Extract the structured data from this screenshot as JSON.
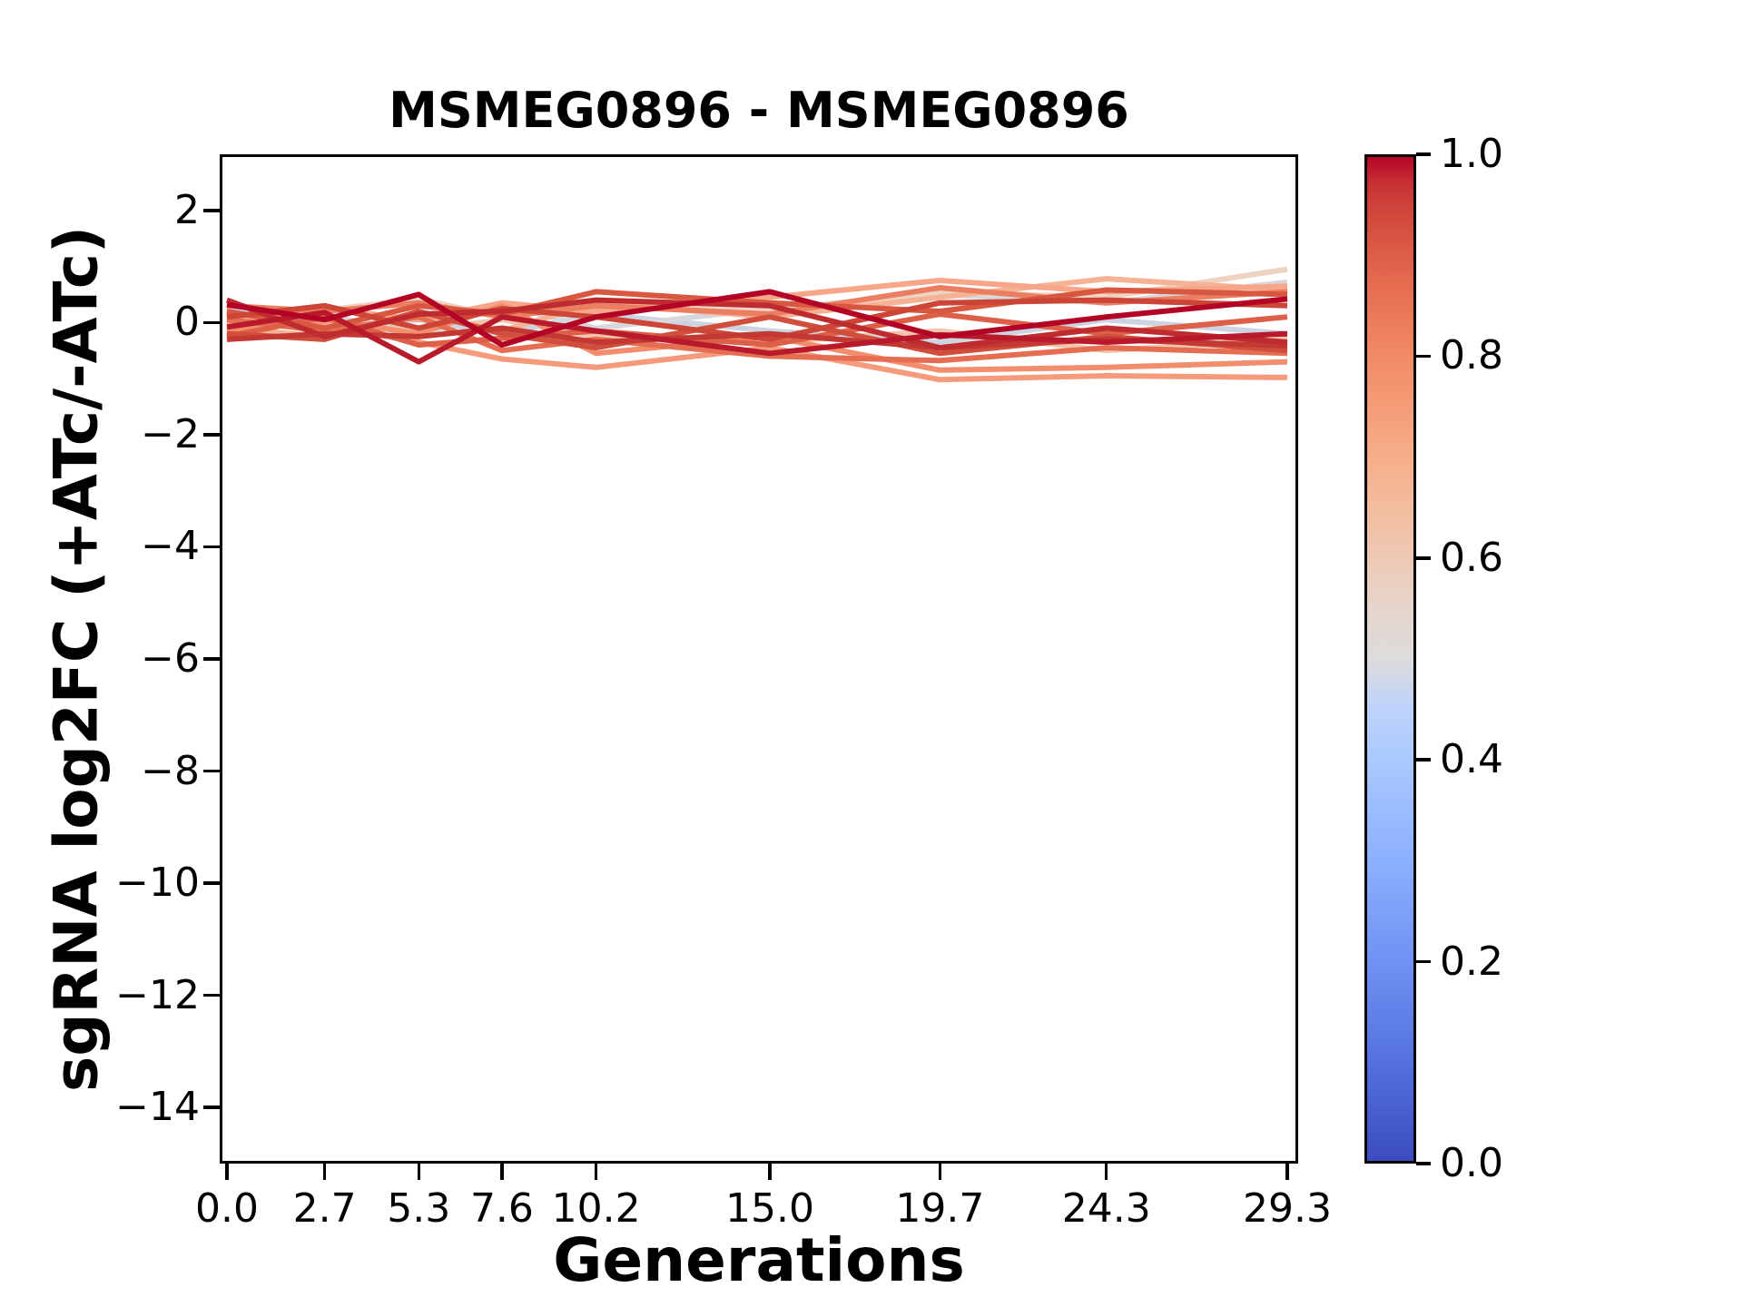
{
  "figure": {
    "background": "#ffffff",
    "spine_color": "#000000",
    "text_color": "#000000"
  },
  "chart_data": {
    "type": "line",
    "title": "MSMEG0896 - MSMEG0896",
    "xlabel": "Generations",
    "ylabel": "sgRNA log2FC (+ATc/-ATc)",
    "x": [
      0.0,
      2.7,
      5.3,
      7.6,
      10.2,
      15.0,
      19.7,
      24.3,
      29.3
    ],
    "x_tick_labels": [
      "0.0",
      "2.7",
      "5.3",
      "7.6",
      "10.2",
      "15.0",
      "19.7",
      "24.3",
      "29.3"
    ],
    "y_ticks": [
      2,
      0,
      -2,
      -4,
      -6,
      -8,
      -10,
      -12,
      -14
    ],
    "y_tick_labels": [
      "2",
      "0",
      "−2",
      "−4",
      "−6",
      "−8",
      "−10",
      "−12",
      "−14"
    ],
    "xlim": [
      -0.2,
      29.6
    ],
    "ylim": [
      -15,
      3
    ],
    "grid": false,
    "legend": "none",
    "line_width": 6,
    "series": [
      {
        "colormap_value": 0.6,
        "color": "#f2c6ac",
        "values": [
          0.2,
          0.1,
          -0.15,
          0.05,
          -0.25,
          -0.35,
          -0.15,
          -0.5,
          -0.3
        ]
      },
      {
        "colormap_value": 0.45,
        "color": "#ccd3e1",
        "values": [
          0.25,
          -0.1,
          0.05,
          -0.2,
          0.15,
          -0.15,
          -0.35,
          0.05,
          -0.2
        ]
      },
      {
        "colormap_value": 0.48,
        "color": "#d6d8dd",
        "values": [
          -0.05,
          0.15,
          -0.25,
          0.32,
          -0.1,
          0.25,
          0.5,
          0.35,
          0.72
        ]
      },
      {
        "colormap_value": 0.55,
        "color": "#eed3c3",
        "values": [
          0.1,
          0.22,
          0.42,
          0.1,
          0.3,
          0.2,
          0.55,
          0.45,
          0.95
        ]
      },
      {
        "colormap_value": 0.68,
        "color": "#f6b295",
        "values": [
          -0.1,
          -0.25,
          0.15,
          -0.15,
          0.35,
          0.1,
          0.45,
          0.78,
          0.58
        ]
      },
      {
        "colormap_value": 0.72,
        "color": "#f7a689",
        "values": [
          0.0,
          0.25,
          0.05,
          0.35,
          0.2,
          0.45,
          0.75,
          0.55,
          0.65
        ]
      },
      {
        "colormap_value": 0.75,
        "color": "#f59b7c",
        "values": [
          0.15,
          -0.05,
          -0.35,
          -0.65,
          -0.8,
          -0.45,
          -1.02,
          -0.95,
          -0.98
        ]
      },
      {
        "colormap_value": 0.78,
        "color": "#f28e6e",
        "values": [
          -0.15,
          0.05,
          -0.2,
          0.3,
          -0.55,
          -0.25,
          -0.85,
          -0.8,
          -0.7
        ]
      },
      {
        "colormap_value": 0.82,
        "color": "#eb7d60",
        "values": [
          0.3,
          0.2,
          0.35,
          0.1,
          0.3,
          0.15,
          0.62,
          0.35,
          0.55
        ]
      },
      {
        "colormap_value": 0.85,
        "color": "#e56e52",
        "values": [
          0.05,
          -0.15,
          0.1,
          -0.5,
          -0.3,
          -0.6,
          -0.68,
          -0.45,
          -0.55
        ]
      },
      {
        "colormap_value": 0.88,
        "color": "#de5f47",
        "values": [
          -0.25,
          0.1,
          -0.4,
          -0.28,
          -0.15,
          -0.4,
          0.15,
          -0.2,
          0.1
        ]
      },
      {
        "colormap_value": 0.9,
        "color": "#d85740",
        "values": [
          0.2,
          -0.1,
          0.3,
          0.15,
          0.55,
          0.35,
          0.2,
          0.58,
          0.5
        ]
      },
      {
        "colormap_value": 0.92,
        "color": "#d14e3c",
        "values": [
          -0.2,
          -0.3,
          0.2,
          -0.2,
          -0.45,
          0.1,
          -0.55,
          -0.25,
          -0.5
        ]
      },
      {
        "colormap_value": 0.93,
        "color": "#cc4537",
        "values": [
          0.1,
          0.3,
          -0.1,
          0.25,
          0.1,
          -0.3,
          0.35,
          0.4,
          0.3
        ]
      },
      {
        "colormap_value": 0.95,
        "color": "#c43833",
        "values": [
          -0.3,
          -0.2,
          -0.25,
          -0.1,
          -0.35,
          -0.2,
          -0.45,
          -0.3,
          -0.42
        ]
      },
      {
        "colormap_value": 0.96,
        "color": "#bf2c30",
        "values": [
          0.4,
          -0.25,
          0.15,
          0.2,
          0.4,
          0.3,
          -0.45,
          -0.1,
          -0.35
        ]
      },
      {
        "colormap_value": 0.98,
        "color": "#b8192b",
        "values": [
          -0.08,
          0.18,
          -0.7,
          0.1,
          -0.15,
          -0.55,
          -0.22,
          -0.35,
          -0.2
        ]
      },
      {
        "colormap_value": 1.0,
        "color": "#b40426",
        "values": [
          0.32,
          0.05,
          0.5,
          -0.4,
          0.1,
          0.55,
          -0.25,
          0.1,
          0.42
        ]
      }
    ],
    "colorbar": {
      "cmap": "coolwarm",
      "range": [
        0.0,
        1.0
      ],
      "tick_values": [
        1.0,
        0.8,
        0.6,
        0.4,
        0.2,
        0.0
      ],
      "tick_labels": [
        "1.0",
        "0.8",
        "0.6",
        "0.4",
        "0.2",
        "0.0"
      ],
      "gradient_stops": [
        {
          "pos": 0.0,
          "color": "#3b4cc0"
        },
        {
          "pos": 0.1,
          "color": "#5572df"
        },
        {
          "pos": 0.2,
          "color": "#7092f3"
        },
        {
          "pos": 0.3,
          "color": "#8db0fe"
        },
        {
          "pos": 0.4,
          "color": "#aac9fd"
        },
        {
          "pos": 0.45,
          "color": "#bed2fc"
        },
        {
          "pos": 0.5,
          "color": "#dddcdc"
        },
        {
          "pos": 0.55,
          "color": "#e6d5cc"
        },
        {
          "pos": 0.6,
          "color": "#eec9b4"
        },
        {
          "pos": 0.65,
          "color": "#f3bd9e"
        },
        {
          "pos": 0.7,
          "color": "#f6ae8a"
        },
        {
          "pos": 0.75,
          "color": "#f59d78"
        },
        {
          "pos": 0.8,
          "color": "#f18b67"
        },
        {
          "pos": 0.85,
          "color": "#e97657"
        },
        {
          "pos": 0.9,
          "color": "#de5f48"
        },
        {
          "pos": 0.95,
          "color": "#cf443a"
        },
        {
          "pos": 0.975,
          "color": "#c52f33"
        },
        {
          "pos": 1.0,
          "color": "#b40426"
        }
      ]
    }
  }
}
